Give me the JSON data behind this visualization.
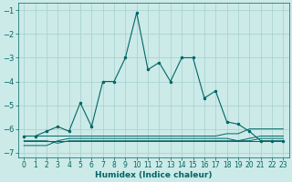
{
  "xlabel": "Humidex (Indice chaleur)",
  "bg_color": "#cceae8",
  "grid_color": "#aad4d2",
  "line_color": "#006666",
  "x_main": [
    0,
    1,
    2,
    3,
    4,
    5,
    6,
    7,
    8,
    9,
    10,
    11,
    12,
    13,
    14,
    15,
    16,
    17,
    18,
    19,
    20,
    21,
    22,
    23
  ],
  "y_main": [
    -6.3,
    -6.3,
    -6.1,
    -5.9,
    -6.1,
    -4.9,
    -5.9,
    -4.0,
    -4.0,
    -3.0,
    -1.1,
    -3.5,
    -3.2,
    -4.0,
    -3.0,
    -3.0,
    -4.7,
    -4.4,
    -5.7,
    -5.8,
    -6.1,
    -6.5,
    -6.5,
    -6.5
  ],
  "y_flat1": [
    -6.5,
    -6.5,
    -6.5,
    -6.5,
    -6.5,
    -6.5,
    -6.5,
    -6.5,
    -6.5,
    -6.5,
    -6.5,
    -6.5,
    -6.5,
    -6.5,
    -6.5,
    -6.5,
    -6.5,
    -6.5,
    -6.5,
    -6.5,
    -6.5,
    -6.5,
    -6.5,
    -6.5
  ],
  "y_flat2": [
    -6.7,
    -6.7,
    -6.7,
    -6.5,
    -6.4,
    -6.4,
    -6.4,
    -6.4,
    -6.4,
    -6.4,
    -6.4,
    -6.4,
    -6.4,
    -6.4,
    -6.4,
    -6.4,
    -6.4,
    -6.4,
    -6.4,
    -6.5,
    -6.5,
    -6.4,
    -6.4,
    -6.4
  ],
  "y_flat3": [
    -6.5,
    -6.5,
    -6.5,
    -6.6,
    -6.5,
    -6.5,
    -6.5,
    -6.5,
    -6.5,
    -6.5,
    -6.5,
    -6.5,
    -6.5,
    -6.5,
    -6.5,
    -6.5,
    -6.5,
    -6.5,
    -6.5,
    -6.5,
    -6.4,
    -6.3,
    -6.3,
    -6.3
  ],
  "y_flat4": [
    -6.3,
    -6.3,
    -6.3,
    -6.3,
    -6.3,
    -6.3,
    -6.3,
    -6.3,
    -6.3,
    -6.3,
    -6.3,
    -6.3,
    -6.3,
    -6.3,
    -6.3,
    -6.3,
    -6.3,
    -6.3,
    -6.2,
    -6.2,
    -6.0,
    -6.0,
    -6.0,
    -6.0
  ],
  "ylim": [
    -7.2,
    -0.7
  ],
  "xlim": [
    -0.5,
    23.5
  ],
  "yticks": [
    -7,
    -6,
    -5,
    -4,
    -3,
    -2,
    -1
  ],
  "xticks": [
    0,
    1,
    2,
    3,
    4,
    5,
    6,
    7,
    8,
    9,
    10,
    11,
    12,
    13,
    14,
    15,
    16,
    17,
    18,
    19,
    20,
    21,
    22,
    23
  ],
  "tick_fontsize": 5.5,
  "xlabel_fontsize": 6.5
}
